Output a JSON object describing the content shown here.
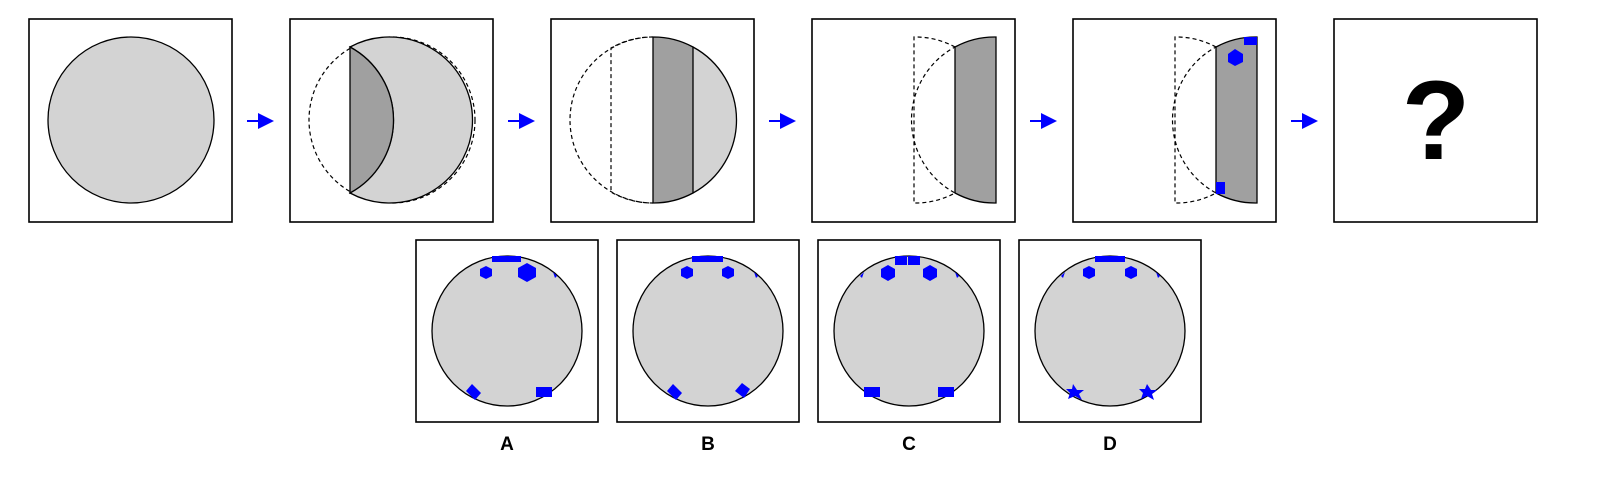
{
  "question_mark": "?",
  "option_labels": [
    "A",
    "B",
    "C",
    "D"
  ],
  "colors": {
    "paper": "#d3d3d3",
    "fold": "#a0a0a0",
    "hole": "#0000ff",
    "arrow": "#0000ff",
    "frame": "#000000"
  }
}
